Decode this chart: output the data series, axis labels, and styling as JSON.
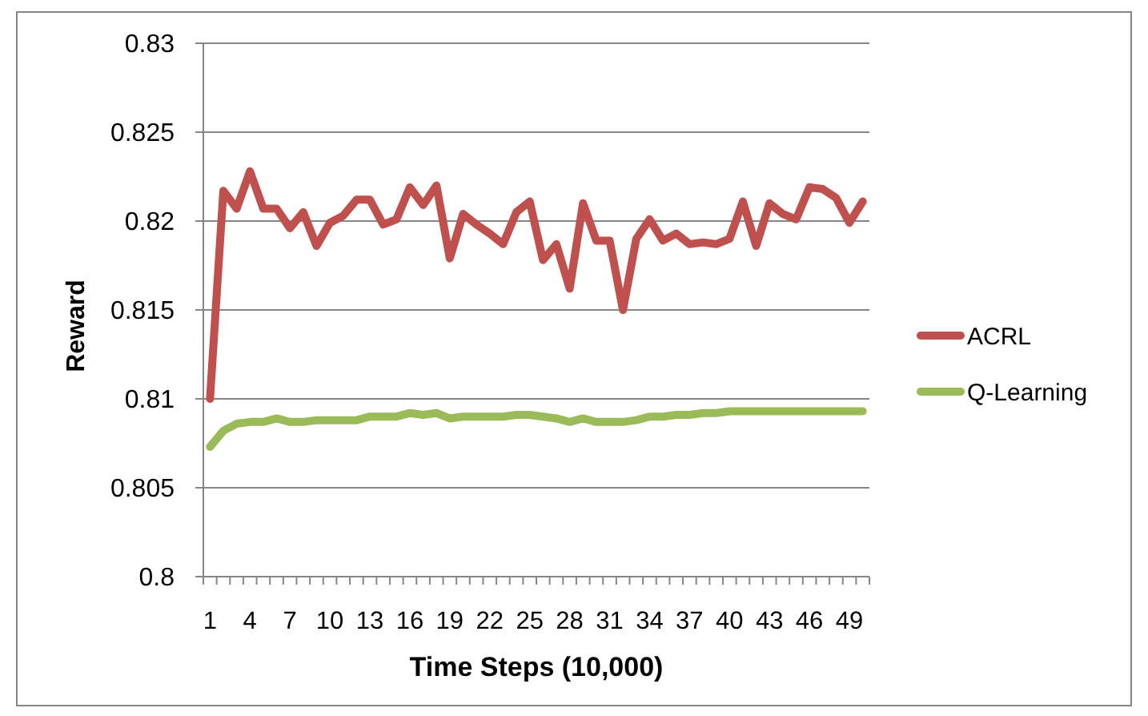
{
  "chart_data": {
    "type": "line",
    "xlabel": "Time Steps (10,000)",
    "ylabel": "Reward",
    "categories": [
      "1",
      null,
      null,
      "4",
      null,
      null,
      "7",
      null,
      null,
      "10",
      null,
      null,
      "13",
      null,
      null,
      "16",
      null,
      null,
      "19",
      null,
      null,
      "22",
      null,
      null,
      "25",
      null,
      null,
      "28",
      null,
      null,
      "31",
      null,
      null,
      "34",
      null,
      null,
      "37",
      null,
      null,
      "40",
      null,
      null,
      "43",
      null,
      null,
      "46",
      null,
      null,
      "49",
      null
    ],
    "series": [
      {
        "name": "ACRL",
        "color": "#c0504d",
        "values": [
          0.81,
          0.8217,
          0.8207,
          0.8228,
          0.8207,
          0.8207,
          0.8196,
          0.8205,
          0.8186,
          0.8199,
          0.8203,
          0.8212,
          0.8212,
          0.8198,
          0.8201,
          0.8219,
          0.8209,
          0.822,
          0.8179,
          0.8204,
          0.8198,
          0.8193,
          0.8187,
          0.8205,
          0.8211,
          0.8178,
          0.8187,
          0.8162,
          0.821,
          0.8189,
          0.8189,
          0.815,
          0.819,
          0.8201,
          0.8189,
          0.8193,
          0.8187,
          0.8188,
          0.8187,
          0.819,
          0.8211,
          0.8186,
          0.821,
          0.8204,
          0.8201,
          0.8219,
          0.8218,
          0.8213,
          0.8199,
          0.8211
        ]
      },
      {
        "name": "Q-Learning",
        "color": "#9bbb59",
        "values": [
          0.8073,
          0.8082,
          0.8086,
          0.8087,
          0.8087,
          0.8089,
          0.8087,
          0.8087,
          0.8088,
          0.8088,
          0.8088,
          0.8088,
          0.809,
          0.809,
          0.809,
          0.8092,
          0.8091,
          0.8092,
          0.8089,
          0.809,
          0.809,
          0.809,
          0.809,
          0.8091,
          0.8091,
          0.809,
          0.8089,
          0.8087,
          0.8089,
          0.8087,
          0.8087,
          0.8087,
          0.8088,
          0.809,
          0.809,
          0.8091,
          0.8091,
          0.8092,
          0.8092,
          0.8093,
          0.8093,
          0.8093,
          0.8093,
          0.8093,
          0.8093,
          0.8093,
          0.8093,
          0.8093,
          0.8093,
          0.8093
        ]
      }
    ],
    "ylim": [
      0.8,
      0.83
    ],
    "yticks": [
      0.8,
      0.805,
      0.81,
      0.815,
      0.82,
      0.825,
      0.83
    ],
    "grid": "y",
    "legend": "right"
  }
}
